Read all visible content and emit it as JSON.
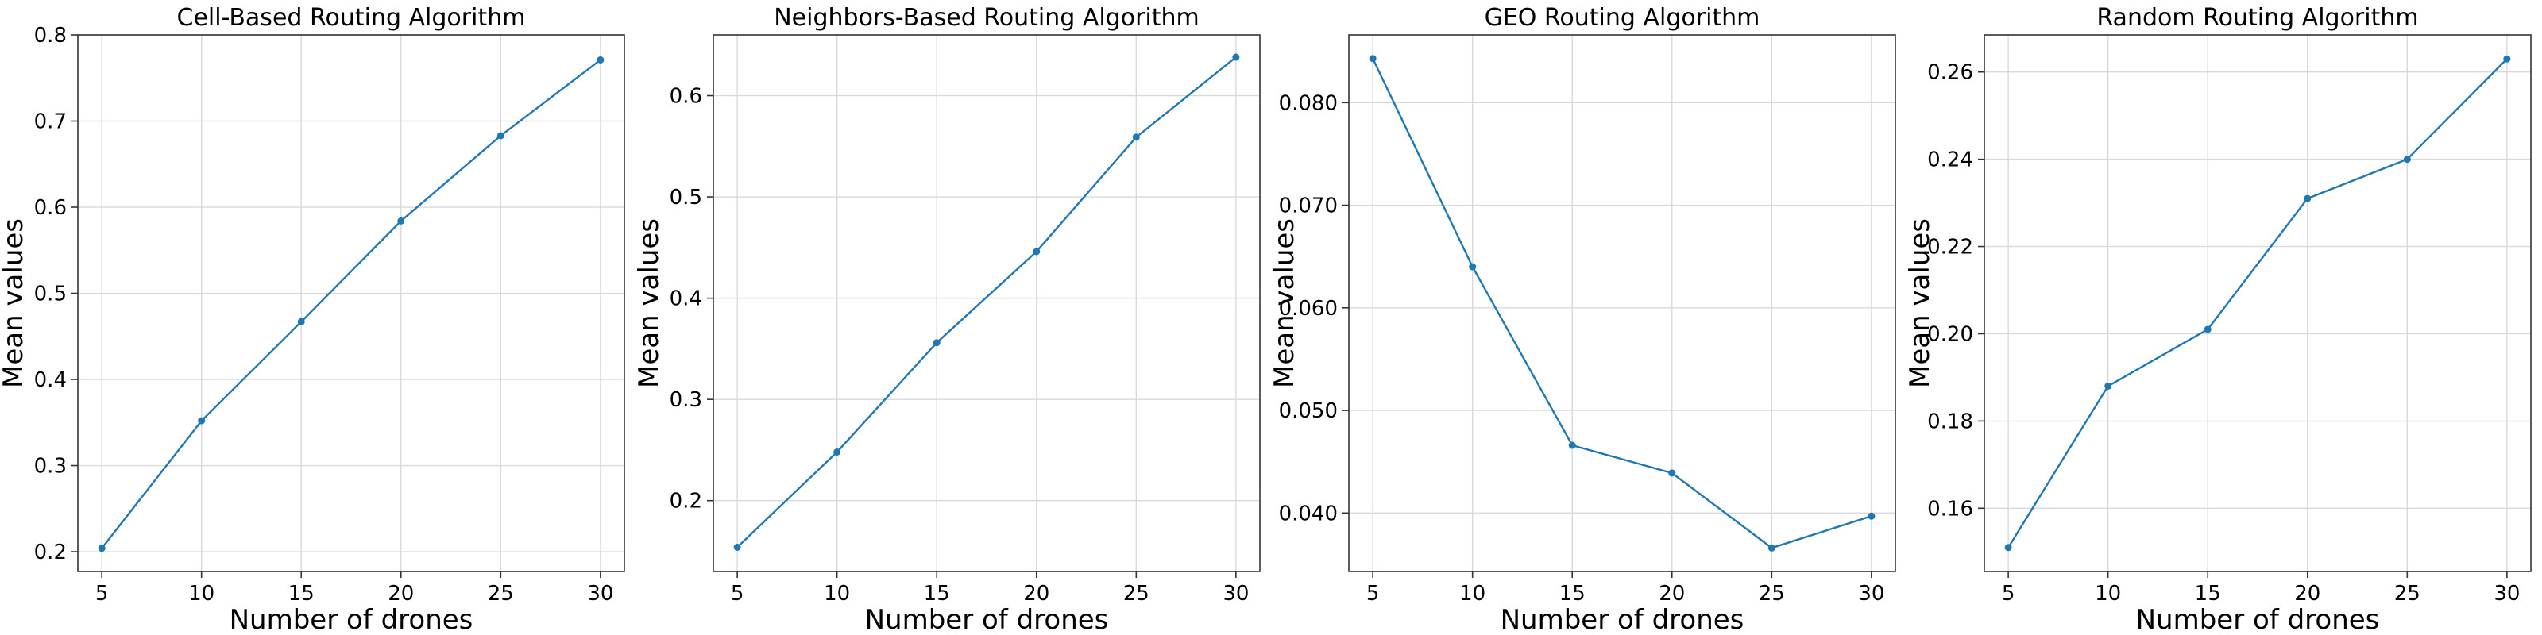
{
  "chart_data": [
    {
      "type": "line",
      "title": "Cell-Based Routing Algorithm",
      "xlabel": "Number of drones",
      "ylabel": "Mean values",
      "x": [
        5,
        10,
        15,
        20,
        25,
        30
      ],
      "xticks": [
        5,
        10,
        15,
        20,
        25,
        30
      ],
      "xlim": [
        3.8,
        31.2
      ],
      "yticks": [
        0.2,
        0.3,
        0.4,
        0.5,
        0.6,
        0.7,
        0.8
      ],
      "ytick_labels": [
        "0.2",
        "0.3",
        "0.4",
        "0.5",
        "0.6",
        "0.7",
        "0.8"
      ],
      "ylim": [
        0.177,
        0.8
      ],
      "grid": true,
      "series": [
        {
          "values": [
            0.204,
            0.352,
            0.467,
            0.584,
            0.683,
            0.771
          ],
          "color": "#1f77b4"
        }
      ]
    },
    {
      "type": "line",
      "title": "Neighbors-Based Routing Algorithm",
      "xlabel": "Number of drones",
      "ylabel": "Mean values",
      "x": [
        5,
        10,
        15,
        20,
        25,
        30
      ],
      "xticks": [
        5,
        10,
        15,
        20,
        25,
        30
      ],
      "xlim": [
        3.8,
        31.2
      ],
      "yticks": [
        0.2,
        0.3,
        0.4,
        0.5,
        0.6
      ],
      "ytick_labels": [
        "0.2",
        "0.3",
        "0.4",
        "0.5",
        "0.6"
      ],
      "ylim": [
        0.13,
        0.66
      ],
      "grid": true,
      "series": [
        {
          "values": [
            0.154,
            0.248,
            0.356,
            0.446,
            0.559,
            0.638
          ],
          "color": "#1f77b4"
        }
      ]
    },
    {
      "type": "line",
      "title": "GEO Routing Algorithm",
      "xlabel": "Number of drones",
      "ylabel": "Mean values",
      "x": [
        5,
        10,
        15,
        20,
        25,
        30
      ],
      "xticks": [
        5,
        10,
        15,
        20,
        25,
        30
      ],
      "xlim": [
        3.8,
        31.2
      ],
      "yticks": [
        0.04,
        0.05,
        0.06,
        0.07,
        0.08
      ],
      "ytick_labels": [
        "0.040",
        "0.050",
        "0.060",
        "0.070",
        "0.080"
      ],
      "ylim": [
        0.0343,
        0.0866
      ],
      "grid": true,
      "series": [
        {
          "values": [
            0.0843,
            0.064,
            0.0466,
            0.0439,
            0.0366,
            0.0397
          ],
          "color": "#1f77b4"
        }
      ]
    },
    {
      "type": "line",
      "title": "Random Routing Algorithm",
      "xlabel": "Number of drones",
      "ylabel": "Mean values",
      "x": [
        5,
        10,
        15,
        20,
        25,
        30
      ],
      "xticks": [
        5,
        10,
        15,
        20,
        25,
        30
      ],
      "xlim": [
        3.8,
        31.2
      ],
      "yticks": [
        0.16,
        0.18,
        0.2,
        0.22,
        0.24,
        0.26
      ],
      "ytick_labels": [
        "0.16",
        "0.18",
        "0.20",
        "0.22",
        "0.24",
        "0.26"
      ],
      "ylim": [
        0.1455,
        0.2685
      ],
      "grid": true,
      "series": [
        {
          "values": [
            0.151,
            0.188,
            0.201,
            0.231,
            0.24,
            0.263
          ],
          "color": "#1f77b4"
        }
      ]
    }
  ]
}
